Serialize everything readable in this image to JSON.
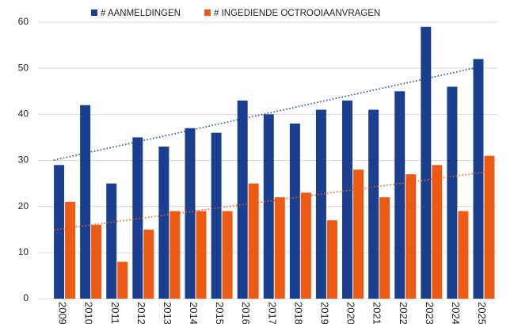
{
  "chart_data": {
    "type": "bar",
    "categories": [
      "2009",
      "2010",
      "2011",
      "2012",
      "2013",
      "2014",
      "2015",
      "2016",
      "2017",
      "2018",
      "2019",
      "2020",
      "2021",
      "2022",
      "2023",
      "2024",
      "2025"
    ],
    "series": [
      {
        "name": "# AANMELDINGEN",
        "color": "#1b3f8f",
        "values": [
          29,
          42,
          25,
          35,
          33,
          37,
          36,
          43,
          40,
          38,
          41,
          43,
          41,
          45,
          59,
          46,
          52
        ],
        "trendline": true
      },
      {
        "name": "# INGEDIENDE OCTROOIAANVRAGEN",
        "color": "#ec5a14",
        "values": [
          21,
          16,
          8,
          15,
          19,
          19,
          19,
          25,
          22,
          23,
          17,
          28,
          22,
          27,
          29,
          19,
          31
        ],
        "trendline": true
      }
    ],
    "ylim": [
      0,
      60
    ],
    "yticks": [
      0,
      10,
      20,
      30,
      40,
      50,
      60
    ],
    "grid": true,
    "legend": "top"
  }
}
